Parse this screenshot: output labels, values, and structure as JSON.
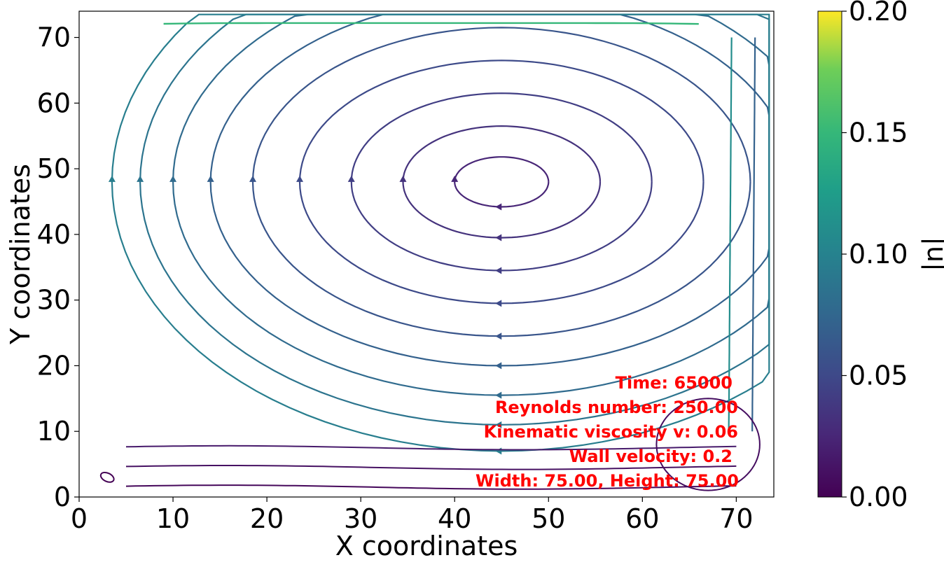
{
  "chart_data": {
    "type": "streamplot",
    "xlabel": "X coordinates",
    "ylabel": "Y coordinates",
    "xlim": [
      0,
      74
    ],
    "ylim": [
      0,
      74
    ],
    "x_ticks": [
      0,
      10,
      20,
      30,
      40,
      50,
      60,
      70
    ],
    "y_ticks": [
      0,
      10,
      20,
      30,
      40,
      50,
      60,
      70
    ],
    "colorbar": {
      "label": "|u|",
      "range": [
        0.0,
        0.2
      ],
      "ticks": [
        "0.00",
        "0.05",
        "0.10",
        "0.15",
        "0.20"
      ],
      "colormap": "viridis"
    },
    "vortex_center": [
      45,
      48
    ],
    "annotations": [
      "Time: 65000",
      "Reynolds number: 250.00",
      "Kinematic viscosity v: 0.06",
      "Wall velocity: 0.2",
      "Width: 75.00, Height: 75.00"
    ],
    "annotation_color": "#ff0000"
  }
}
